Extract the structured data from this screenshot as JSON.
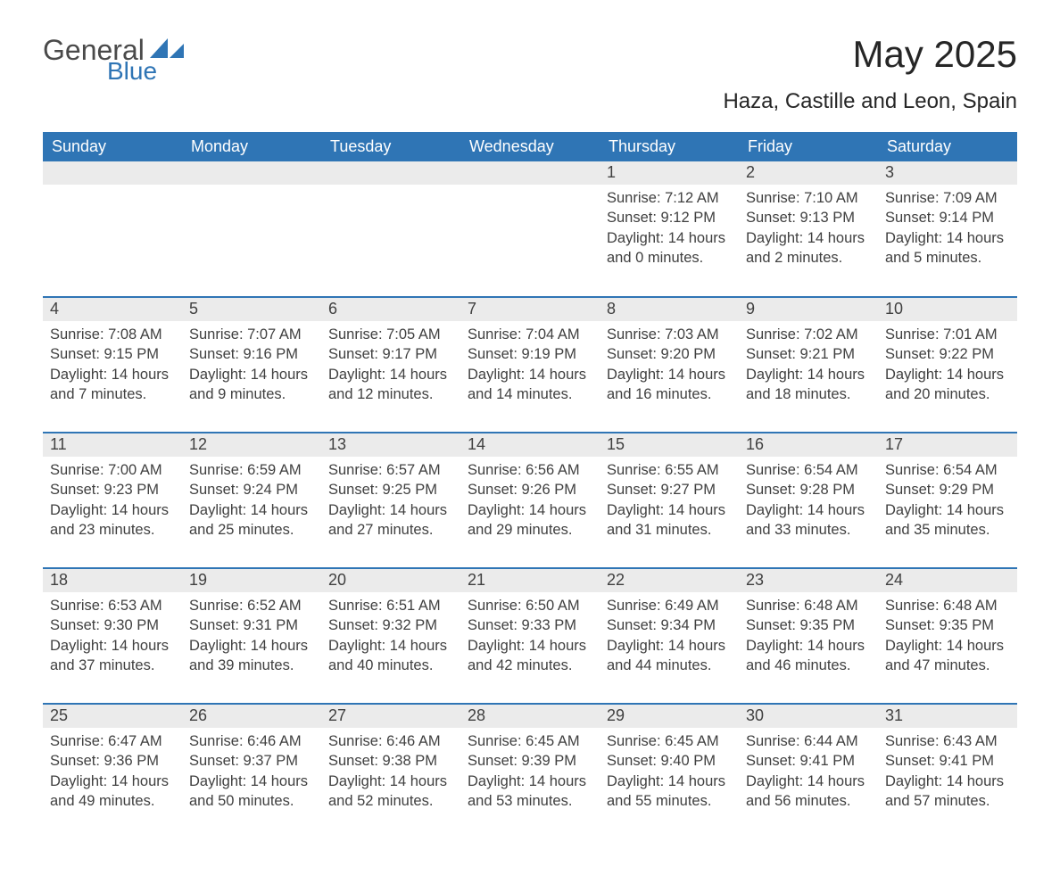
{
  "logo": {
    "text1": "General",
    "text2": "Blue",
    "icon_color": "#2f75b5",
    "text1_color": "#4a4a4a"
  },
  "title": "May 2025",
  "subtitle": "Haza, Castille and Leon, Spain",
  "colors": {
    "header_bg": "#2f75b5",
    "header_text": "#ffffff",
    "daynum_bg": "#ebebeb",
    "border": "#2f75b5",
    "body_text": "#404040",
    "title_text": "#262626",
    "page_bg": "#ffffff"
  },
  "typography": {
    "title_fontsize": 42,
    "subtitle_fontsize": 24,
    "dayheader_fontsize": 18,
    "daynum_fontsize": 18,
    "daycontent_fontsize": 16.5
  },
  "day_headers": [
    "Sunday",
    "Monday",
    "Tuesday",
    "Wednesday",
    "Thursday",
    "Friday",
    "Saturday"
  ],
  "weeks": [
    [
      {
        "n": "",
        "sunrise": "",
        "sunset": "",
        "daylight": ""
      },
      {
        "n": "",
        "sunrise": "",
        "sunset": "",
        "daylight": ""
      },
      {
        "n": "",
        "sunrise": "",
        "sunset": "",
        "daylight": ""
      },
      {
        "n": "",
        "sunrise": "",
        "sunset": "",
        "daylight": ""
      },
      {
        "n": "1",
        "sunrise": "Sunrise: 7:12 AM",
        "sunset": "Sunset: 9:12 PM",
        "daylight": "Daylight: 14 hours and 0 minutes."
      },
      {
        "n": "2",
        "sunrise": "Sunrise: 7:10 AM",
        "sunset": "Sunset: 9:13 PM",
        "daylight": "Daylight: 14 hours and 2 minutes."
      },
      {
        "n": "3",
        "sunrise": "Sunrise: 7:09 AM",
        "sunset": "Sunset: 9:14 PM",
        "daylight": "Daylight: 14 hours and 5 minutes."
      }
    ],
    [
      {
        "n": "4",
        "sunrise": "Sunrise: 7:08 AM",
        "sunset": "Sunset: 9:15 PM",
        "daylight": "Daylight: 14 hours and 7 minutes."
      },
      {
        "n": "5",
        "sunrise": "Sunrise: 7:07 AM",
        "sunset": "Sunset: 9:16 PM",
        "daylight": "Daylight: 14 hours and 9 minutes."
      },
      {
        "n": "6",
        "sunrise": "Sunrise: 7:05 AM",
        "sunset": "Sunset: 9:17 PM",
        "daylight": "Daylight: 14 hours and 12 minutes."
      },
      {
        "n": "7",
        "sunrise": "Sunrise: 7:04 AM",
        "sunset": "Sunset: 9:19 PM",
        "daylight": "Daylight: 14 hours and 14 minutes."
      },
      {
        "n": "8",
        "sunrise": "Sunrise: 7:03 AM",
        "sunset": "Sunset: 9:20 PM",
        "daylight": "Daylight: 14 hours and 16 minutes."
      },
      {
        "n": "9",
        "sunrise": "Sunrise: 7:02 AM",
        "sunset": "Sunset: 9:21 PM",
        "daylight": "Daylight: 14 hours and 18 minutes."
      },
      {
        "n": "10",
        "sunrise": "Sunrise: 7:01 AM",
        "sunset": "Sunset: 9:22 PM",
        "daylight": "Daylight: 14 hours and 20 minutes."
      }
    ],
    [
      {
        "n": "11",
        "sunrise": "Sunrise: 7:00 AM",
        "sunset": "Sunset: 9:23 PM",
        "daylight": "Daylight: 14 hours and 23 minutes."
      },
      {
        "n": "12",
        "sunrise": "Sunrise: 6:59 AM",
        "sunset": "Sunset: 9:24 PM",
        "daylight": "Daylight: 14 hours and 25 minutes."
      },
      {
        "n": "13",
        "sunrise": "Sunrise: 6:57 AM",
        "sunset": "Sunset: 9:25 PM",
        "daylight": "Daylight: 14 hours and 27 minutes."
      },
      {
        "n": "14",
        "sunrise": "Sunrise: 6:56 AM",
        "sunset": "Sunset: 9:26 PM",
        "daylight": "Daylight: 14 hours and 29 minutes."
      },
      {
        "n": "15",
        "sunrise": "Sunrise: 6:55 AM",
        "sunset": "Sunset: 9:27 PM",
        "daylight": "Daylight: 14 hours and 31 minutes."
      },
      {
        "n": "16",
        "sunrise": "Sunrise: 6:54 AM",
        "sunset": "Sunset: 9:28 PM",
        "daylight": "Daylight: 14 hours and 33 minutes."
      },
      {
        "n": "17",
        "sunrise": "Sunrise: 6:54 AM",
        "sunset": "Sunset: 9:29 PM",
        "daylight": "Daylight: 14 hours and 35 minutes."
      }
    ],
    [
      {
        "n": "18",
        "sunrise": "Sunrise: 6:53 AM",
        "sunset": "Sunset: 9:30 PM",
        "daylight": "Daylight: 14 hours and 37 minutes."
      },
      {
        "n": "19",
        "sunrise": "Sunrise: 6:52 AM",
        "sunset": "Sunset: 9:31 PM",
        "daylight": "Daylight: 14 hours and 39 minutes."
      },
      {
        "n": "20",
        "sunrise": "Sunrise: 6:51 AM",
        "sunset": "Sunset: 9:32 PM",
        "daylight": "Daylight: 14 hours and 40 minutes."
      },
      {
        "n": "21",
        "sunrise": "Sunrise: 6:50 AM",
        "sunset": "Sunset: 9:33 PM",
        "daylight": "Daylight: 14 hours and 42 minutes."
      },
      {
        "n": "22",
        "sunrise": "Sunrise: 6:49 AM",
        "sunset": "Sunset: 9:34 PM",
        "daylight": "Daylight: 14 hours and 44 minutes."
      },
      {
        "n": "23",
        "sunrise": "Sunrise: 6:48 AM",
        "sunset": "Sunset: 9:35 PM",
        "daylight": "Daylight: 14 hours and 46 minutes."
      },
      {
        "n": "24",
        "sunrise": "Sunrise: 6:48 AM",
        "sunset": "Sunset: 9:35 PM",
        "daylight": "Daylight: 14 hours and 47 minutes."
      }
    ],
    [
      {
        "n": "25",
        "sunrise": "Sunrise: 6:47 AM",
        "sunset": "Sunset: 9:36 PM",
        "daylight": "Daylight: 14 hours and 49 minutes."
      },
      {
        "n": "26",
        "sunrise": "Sunrise: 6:46 AM",
        "sunset": "Sunset: 9:37 PM",
        "daylight": "Daylight: 14 hours and 50 minutes."
      },
      {
        "n": "27",
        "sunrise": "Sunrise: 6:46 AM",
        "sunset": "Sunset: 9:38 PM",
        "daylight": "Daylight: 14 hours and 52 minutes."
      },
      {
        "n": "28",
        "sunrise": "Sunrise: 6:45 AM",
        "sunset": "Sunset: 9:39 PM",
        "daylight": "Daylight: 14 hours and 53 minutes."
      },
      {
        "n": "29",
        "sunrise": "Sunrise: 6:45 AM",
        "sunset": "Sunset: 9:40 PM",
        "daylight": "Daylight: 14 hours and 55 minutes."
      },
      {
        "n": "30",
        "sunrise": "Sunrise: 6:44 AM",
        "sunset": "Sunset: 9:41 PM",
        "daylight": "Daylight: 14 hours and 56 minutes."
      },
      {
        "n": "31",
        "sunrise": "Sunrise: 6:43 AM",
        "sunset": "Sunset: 9:41 PM",
        "daylight": "Daylight: 14 hours and 57 minutes."
      }
    ]
  ]
}
